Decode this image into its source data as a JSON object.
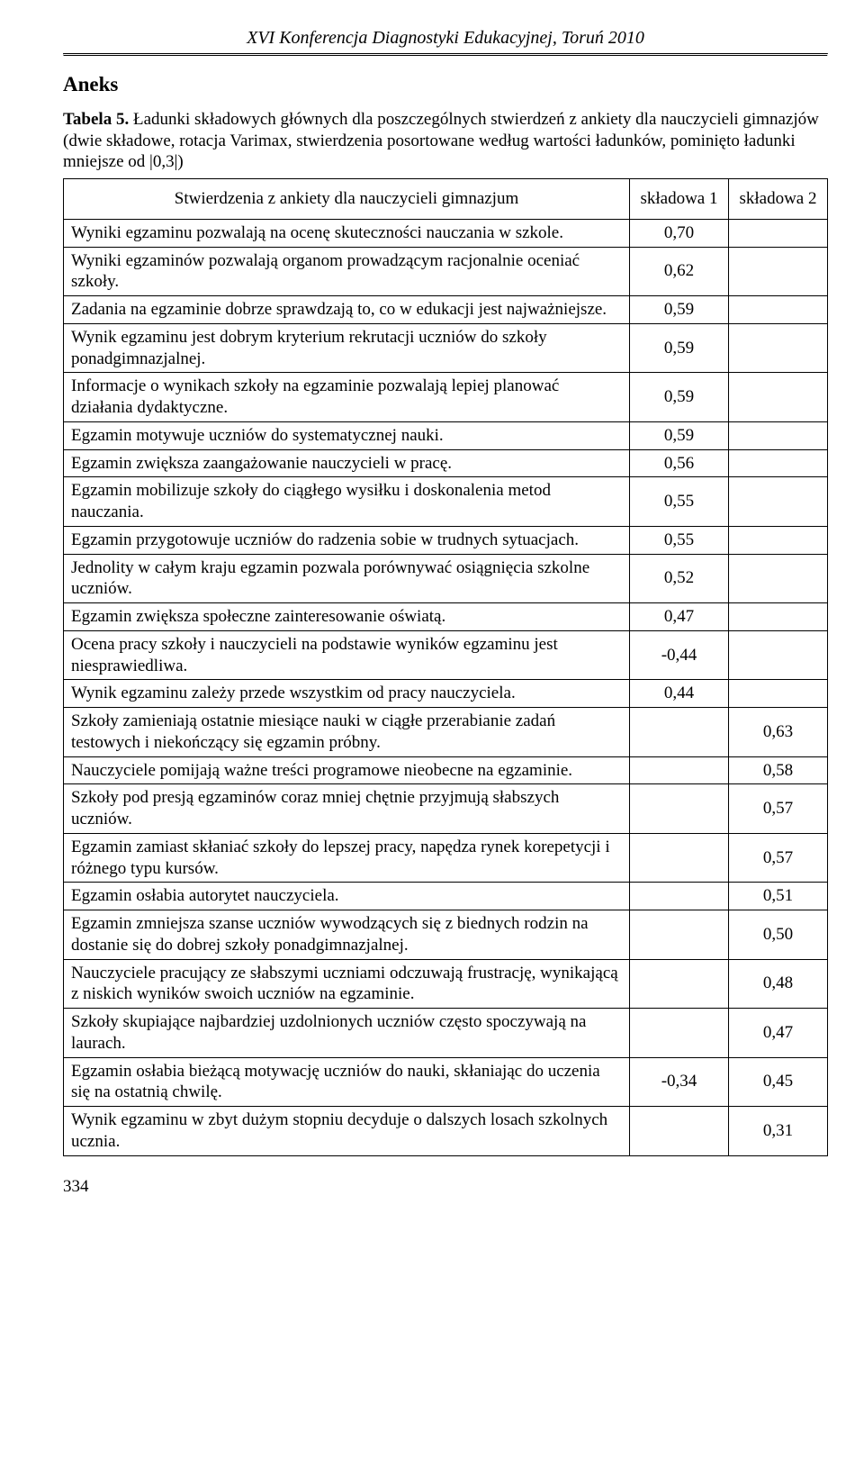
{
  "conference_header": "XVI Konferencja Diagnostyki Edukacyjnej, Toruń 2010",
  "aneks": "Aneks",
  "caption": {
    "label": "Tabela 5.",
    "text": " Ładunki składowych głównych dla poszczególnych stwierdzeń z ankiety dla nauczycieli gimnazjów (dwie składowe, rotacja Varimax, stwierdzenia posortowane według wartości ładunków, pominięto ładunki mniejsze od |0,3|)"
  },
  "table": {
    "header_stmt": "Stwierdzenia z ankiety dla nauczycieli gimnazjum",
    "header_v1": "składowa 1",
    "header_v2": "składowa 2",
    "rows": [
      {
        "stmt": "Wyniki egzaminu pozwalają na ocenę skuteczności nauczania w szkole.",
        "v1": "0,70",
        "v2": ""
      },
      {
        "stmt": "Wyniki egzaminów pozwalają organom prowadzącym racjonalnie oceniać szkoły.",
        "v1": "0,62",
        "v2": ""
      },
      {
        "stmt": "Zadania na egzaminie dobrze sprawdzają to, co w edukacji jest najważniejsze.",
        "v1": "0,59",
        "v2": ""
      },
      {
        "stmt": "Wynik egzaminu jest dobrym kryterium rekrutacji uczniów do szkoły ponadgimnazjalnej.",
        "v1": "0,59",
        "v2": ""
      },
      {
        "stmt": "Informacje o wynikach szkoły na egzaminie pozwalają lepiej planować działania dydaktyczne.",
        "v1": "0,59",
        "v2": ""
      },
      {
        "stmt": "Egzamin motywuje uczniów do systematycznej nauki.",
        "v1": "0,59",
        "v2": ""
      },
      {
        "stmt": "Egzamin zwiększa zaangażowanie nauczycieli w pracę.",
        "v1": "0,56",
        "v2": ""
      },
      {
        "stmt": "Egzamin mobilizuje szkoły do ciągłego wysiłku i doskonalenia metod nauczania.",
        "v1": "0,55",
        "v2": ""
      },
      {
        "stmt": "Egzamin przygotowuje uczniów do radzenia sobie w trudnych sytuacjach.",
        "v1": "0,55",
        "v2": ""
      },
      {
        "stmt": "Jednolity w całym kraju egzamin pozwala porównywać osiągnięcia szkolne uczniów.",
        "v1": "0,52",
        "v2": ""
      },
      {
        "stmt": "Egzamin zwiększa społeczne zainteresowanie oświatą.",
        "v1": "0,47",
        "v2": ""
      },
      {
        "stmt": "Ocena pracy szkoły i nauczycieli na podstawie wyników egzaminu jest niesprawiedliwa.",
        "v1": "-0,44",
        "v2": ""
      },
      {
        "stmt": "Wynik egzaminu zależy przede wszystkim od pracy nauczyciela.",
        "v1": "0,44",
        "v2": ""
      },
      {
        "stmt": "Szkoły zamieniają ostatnie miesiące nauki w ciągłe przerabianie zadań testowych i niekończący się egzamin próbny.",
        "v1": "",
        "v2": "0,63"
      },
      {
        "stmt": "Nauczyciele pomijają ważne treści programowe nieobecne na egzaminie.",
        "v1": "",
        "v2": "0,58"
      },
      {
        "stmt": "Szkoły pod presją egzaminów coraz mniej chętnie przyjmują słabszych uczniów.",
        "v1": "",
        "v2": "0,57"
      },
      {
        "stmt": "Egzamin zamiast skłaniać szkoły do lepszej pracy, napędza rynek korepetycji i różnego typu kursów.",
        "v1": "",
        "v2": "0,57"
      },
      {
        "stmt": "Egzamin osłabia autorytet nauczyciela.",
        "v1": "",
        "v2": "0,51"
      },
      {
        "stmt": "Egzamin zmniejsza szanse uczniów wywodzących się z biednych rodzin na dostanie się do dobrej szkoły ponadgimnazjalnej.",
        "v1": "",
        "v2": "0,50"
      },
      {
        "stmt": "Nauczyciele pracujący ze słabszymi uczniami odczuwają frustrację, wynikającą z niskich wyników swoich uczniów na egzaminie.",
        "v1": "",
        "v2": "0,48"
      },
      {
        "stmt": "Szkoły skupiające najbardziej uzdolnionych uczniów często spoczywają na laurach.",
        "v1": "",
        "v2": "0,47"
      },
      {
        "stmt": "Egzamin osłabia bieżącą motywację uczniów do nauki, skłaniając do uczenia się na ostatnią chwilę.",
        "v1": "-0,34",
        "v2": "0,45"
      },
      {
        "stmt": "Wynik egzaminu w zbyt dużym stopniu decyduje o dalszych losach szkolnych ucznia.",
        "v1": "",
        "v2": "0,31"
      }
    ]
  },
  "page_number": "334"
}
